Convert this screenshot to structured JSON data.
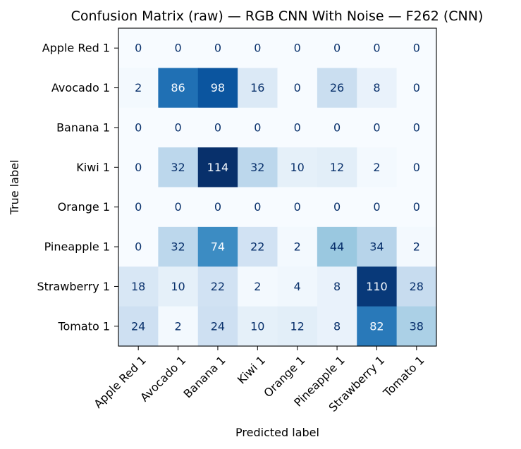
{
  "chart_data": {
    "type": "heatmap",
    "title": "Confusion Matrix (raw) — RGB CNN With Noise — F262 (CNN)",
    "xlabel": "Predicted label",
    "ylabel": "True label",
    "row_labels": [
      "Apple Red 1",
      "Avocado 1",
      "Banana 1",
      "Kiwi 1",
      "Orange 1",
      "Pineapple 1",
      "Strawberry 1",
      "Tomato 1"
    ],
    "col_labels": [
      "Apple Red 1",
      "Avocado 1",
      "Banana 1",
      "Kiwi 1",
      "Orange 1",
      "Pineapple 1",
      "Strawberry 1",
      "Tomato 1"
    ],
    "values": [
      [
        0,
        0,
        0,
        0,
        0,
        0,
        0,
        0
      ],
      [
        2,
        86,
        98,
        16,
        0,
        26,
        8,
        0
      ],
      [
        0,
        0,
        0,
        0,
        0,
        0,
        0,
        0
      ],
      [
        0,
        32,
        114,
        32,
        10,
        12,
        2,
        0
      ],
      [
        0,
        0,
        0,
        0,
        0,
        0,
        0,
        0
      ],
      [
        0,
        32,
        74,
        22,
        2,
        44,
        34,
        2
      ],
      [
        18,
        10,
        22,
        2,
        4,
        8,
        110,
        28
      ],
      [
        24,
        2,
        24,
        10,
        12,
        8,
        82,
        38
      ]
    ],
    "colormap": "Blues",
    "vmin": 0,
    "vmax": 114,
    "colorbar": false,
    "grid": false
  }
}
